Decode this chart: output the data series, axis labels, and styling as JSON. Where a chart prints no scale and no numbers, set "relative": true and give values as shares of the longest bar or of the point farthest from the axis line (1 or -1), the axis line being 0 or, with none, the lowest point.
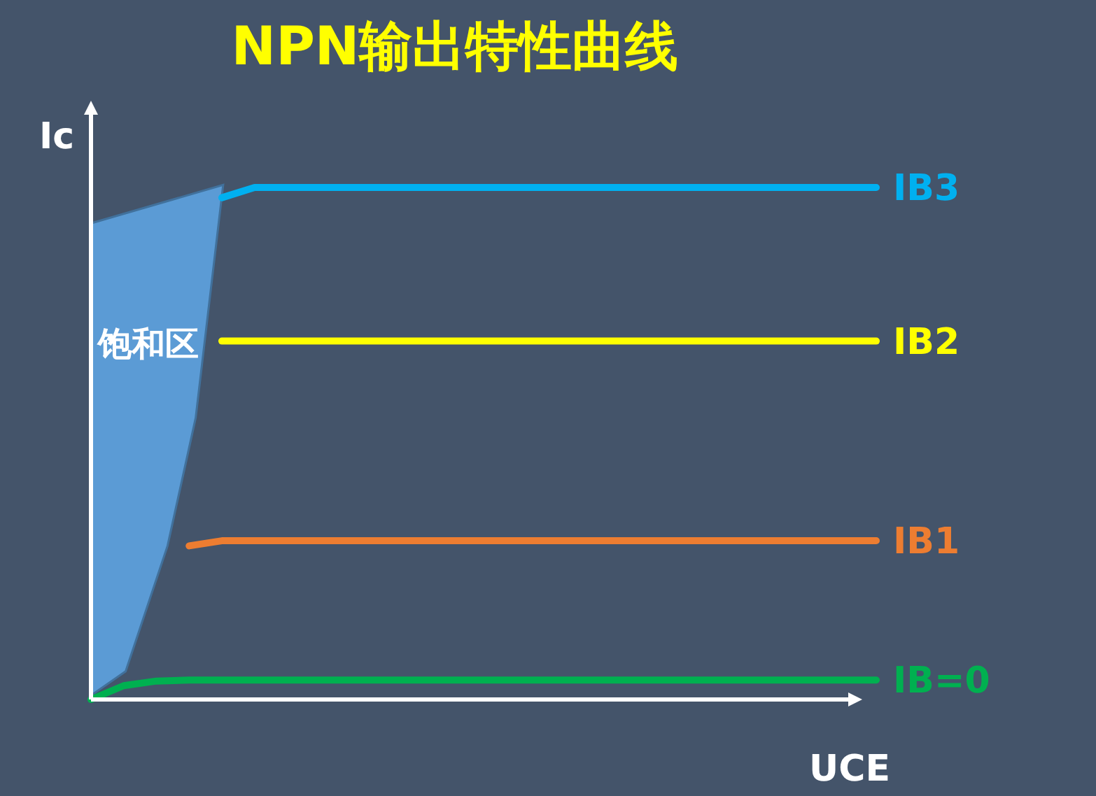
{
  "chart_data": {
    "type": "line",
    "title": "NPN输出特性曲线",
    "xlabel": "UCE",
    "ylabel": "Ic",
    "relative": true,
    "legend": false,
    "annotations": [
      "饱和区"
    ],
    "categories": [
      null,
      null,
      null,
      null,
      null,
      null,
      null,
      null,
      null,
      null,
      null,
      null,
      null,
      null,
      null,
      null,
      null,
      null,
      null,
      null,
      null,
      null,
      null,
      null,
      null
    ],
    "series": [
      {
        "name": "IB3",
        "color": "#00b0f0",
        "values": [
          null,
          null,
          null,
          null,
          0.98,
          1,
          1,
          1,
          1,
          1,
          1,
          1,
          1,
          1,
          1,
          1,
          1,
          1,
          1,
          1,
          1,
          1,
          1,
          1,
          1
        ]
      },
      {
        "name": "IB2",
        "color": "#ffff00",
        "values": [
          null,
          null,
          null,
          null,
          0.7,
          0.7,
          0.7,
          0.7,
          0.7,
          0.7,
          0.7,
          0.7,
          0.7,
          0.7,
          0.7,
          0.7,
          0.7,
          0.7,
          0.7,
          0.7,
          0.7,
          0.7,
          0.7,
          0.7,
          0.7
        ]
      },
      {
        "name": "IB1",
        "color": "#ed7d31",
        "values": [
          null,
          null,
          null,
          0.3,
          0.31,
          0.31,
          0.31,
          0.31,
          0.31,
          0.31,
          0.31,
          0.31,
          0.31,
          0.31,
          0.31,
          0.31,
          0.31,
          0.31,
          0.31,
          0.31,
          0.31,
          0.31,
          0.31,
          0.31,
          0.31
        ]
      },
      {
        "name": "IB=0",
        "color": "#00b050",
        "values": [
          0,
          0.027,
          0.036,
          0.038,
          0.038,
          0.038,
          0.038,
          0.038,
          0.038,
          0.038,
          0.038,
          0.038,
          0.038,
          0.038,
          0.038,
          0.038,
          0.038,
          0.038,
          0.038,
          0.038,
          0.038,
          0.038,
          0.038,
          0.038,
          0.038
        ]
      }
    ]
  }
}
